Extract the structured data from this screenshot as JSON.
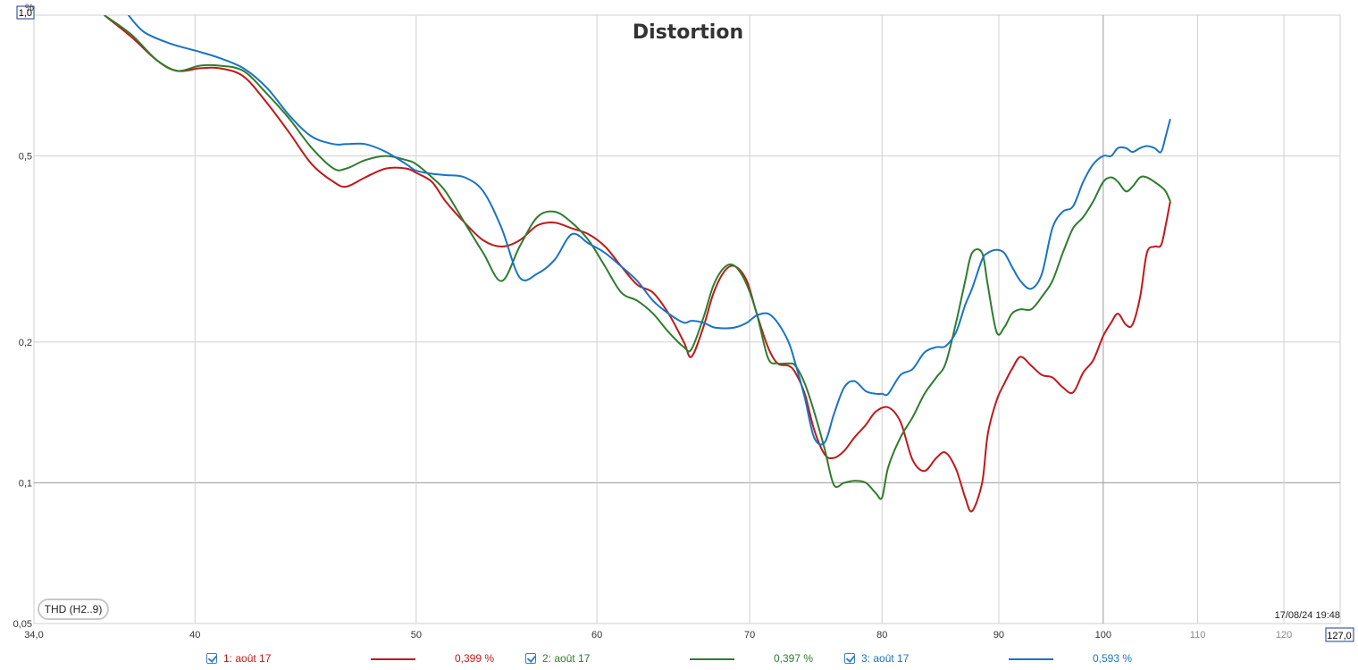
{
  "chart_data": {
    "type": "line",
    "title": "Distortion",
    "y_unit": "%",
    "y_scale": "log",
    "ylim": [
      0.05,
      1.0
    ],
    "xlim": [
      34,
      127
    ],
    "y_ticks": [
      "1,0",
      "0,5",
      "0,2",
      "0,1",
      "0,05"
    ],
    "y_tick_values": [
      1.0,
      0.5,
      0.2,
      0.1,
      0.05
    ],
    "x_ticks": [
      "34,0",
      "40",
      "50",
      "60",
      "70",
      "80",
      "90",
      "100",
      "110",
      "120",
      "127,0"
    ],
    "x_tick_values": [
      34,
      40,
      50,
      60,
      70,
      80,
      90,
      100,
      110,
      120,
      127
    ],
    "grid": true,
    "series": [
      {
        "name": "1: août 17",
        "color": "#c0191a",
        "readout": "0,399 %",
        "points": [
          [
            36.5,
            1.0
          ],
          [
            37.5,
            0.9
          ],
          [
            38.5,
            0.8
          ],
          [
            39.3,
            0.76
          ],
          [
            40.2,
            0.77
          ],
          [
            41,
            0.77
          ],
          [
            42,
            0.74
          ],
          [
            43,
            0.65
          ],
          [
            44,
            0.56
          ],
          [
            45,
            0.48
          ],
          [
            46,
            0.44
          ],
          [
            46.6,
            0.43
          ],
          [
            47.5,
            0.45
          ],
          [
            48.5,
            0.47
          ],
          [
            49.5,
            0.47
          ],
          [
            50,
            0.46
          ],
          [
            50.8,
            0.44
          ],
          [
            51.5,
            0.4
          ],
          [
            52.5,
            0.36
          ],
          [
            53.5,
            0.33
          ],
          [
            54.5,
            0.32
          ],
          [
            55.5,
            0.33
          ],
          [
            56.5,
            0.355
          ],
          [
            57.5,
            0.36
          ],
          [
            58.5,
            0.35
          ],
          [
            59.5,
            0.34
          ],
          [
            60.5,
            0.32
          ],
          [
            61.5,
            0.29
          ],
          [
            62.5,
            0.265
          ],
          [
            63.5,
            0.255
          ],
          [
            64.5,
            0.23
          ],
          [
            65.5,
            0.2
          ],
          [
            66,
            0.186
          ],
          [
            66.8,
            0.215
          ],
          [
            67.5,
            0.255
          ],
          [
            68.3,
            0.285
          ],
          [
            69,
            0.29
          ],
          [
            69.8,
            0.27
          ],
          [
            70.5,
            0.23
          ],
          [
            71.3,
            0.195
          ],
          [
            72,
            0.18
          ],
          [
            72.8,
            0.178
          ],
          [
            73.3,
            0.172
          ],
          [
            74,
            0.155
          ],
          [
            74.7,
            0.13
          ],
          [
            75.5,
            0.115
          ],
          [
            76.2,
            0.113
          ],
          [
            77,
            0.117
          ],
          [
            77.8,
            0.125
          ],
          [
            78.7,
            0.133
          ],
          [
            79.5,
            0.142
          ],
          [
            80.5,
            0.145
          ],
          [
            81.5,
            0.135
          ],
          [
            82.5,
            0.112
          ],
          [
            83.5,
            0.106
          ],
          [
            84.5,
            0.113
          ],
          [
            85.3,
            0.116
          ],
          [
            86.2,
            0.107
          ],
          [
            87,
            0.093
          ],
          [
            87.6,
            0.087
          ],
          [
            88.5,
            0.1
          ],
          [
            89,
            0.127
          ],
          [
            89.8,
            0.15
          ],
          [
            90.5,
            0.163
          ],
          [
            91.2,
            0.175
          ],
          [
            92,
            0.186
          ],
          [
            93,
            0.178
          ],
          [
            94,
            0.17
          ],
          [
            95,
            0.168
          ],
          [
            96,
            0.16
          ],
          [
            97,
            0.156
          ],
          [
            98,
            0.172
          ],
          [
            99,
            0.183
          ],
          [
            100,
            0.206
          ],
          [
            100.8,
            0.22
          ],
          [
            101.5,
            0.23
          ],
          [
            102.3,
            0.218
          ],
          [
            103,
            0.218
          ],
          [
            103.8,
            0.25
          ],
          [
            104.5,
            0.31
          ],
          [
            105.3,
            0.32
          ],
          [
            106,
            0.322
          ],
          [
            106.5,
            0.355
          ],
          [
            107,
            0.4
          ]
        ]
      },
      {
        "name": "2: août 17",
        "color": "#2e7d2e",
        "readout": "0,397 %",
        "points": [
          [
            36.5,
            1.0
          ],
          [
            37.5,
            0.91
          ],
          [
            38.5,
            0.8
          ],
          [
            39.3,
            0.76
          ],
          [
            40.2,
            0.78
          ],
          [
            41,
            0.78
          ],
          [
            42,
            0.76
          ],
          [
            43,
            0.68
          ],
          [
            44,
            0.6
          ],
          [
            45,
            0.52
          ],
          [
            46,
            0.47
          ],
          [
            46.6,
            0.47
          ],
          [
            47.5,
            0.49
          ],
          [
            48.5,
            0.5
          ],
          [
            49.5,
            0.49
          ],
          [
            50,
            0.48
          ],
          [
            50.8,
            0.45
          ],
          [
            51.5,
            0.42
          ],
          [
            52.5,
            0.36
          ],
          [
            53.5,
            0.31
          ],
          [
            54.5,
            0.27
          ],
          [
            55.5,
            0.32
          ],
          [
            56.5,
            0.37
          ],
          [
            57.5,
            0.38
          ],
          [
            58.5,
            0.36
          ],
          [
            59.5,
            0.33
          ],
          [
            60.5,
            0.29
          ],
          [
            61.5,
            0.255
          ],
          [
            62.5,
            0.245
          ],
          [
            63.5,
            0.23
          ],
          [
            64.5,
            0.21
          ],
          [
            65.5,
            0.195
          ],
          [
            66,
            0.193
          ],
          [
            66.8,
            0.225
          ],
          [
            67.5,
            0.265
          ],
          [
            68.3,
            0.29
          ],
          [
            69,
            0.29
          ],
          [
            69.8,
            0.265
          ],
          [
            70.5,
            0.23
          ],
          [
            71.3,
            0.185
          ],
          [
            72,
            0.18
          ],
          [
            72.8,
            0.18
          ],
          [
            73.3,
            0.178
          ],
          [
            74,
            0.163
          ],
          [
            74.7,
            0.142
          ],
          [
            75.5,
            0.118
          ],
          [
            76.2,
            0.099
          ],
          [
            77,
            0.1
          ],
          [
            77.8,
            0.101
          ],
          [
            78.7,
            0.1
          ],
          [
            79.5,
            0.095
          ],
          [
            80,
            0.093
          ],
          [
            80.5,
            0.108
          ],
          [
            81.5,
            0.125
          ],
          [
            82.5,
            0.138
          ],
          [
            83.5,
            0.155
          ],
          [
            84.5,
            0.168
          ],
          [
            85.3,
            0.18
          ],
          [
            86.2,
            0.22
          ],
          [
            87,
            0.27
          ],
          [
            87.6,
            0.31
          ],
          [
            88.5,
            0.31
          ],
          [
            89,
            0.265
          ],
          [
            89.8,
            0.21
          ],
          [
            90.5,
            0.215
          ],
          [
            91.2,
            0.23
          ],
          [
            92,
            0.235
          ],
          [
            93,
            0.235
          ],
          [
            94,
            0.25
          ],
          [
            95,
            0.27
          ],
          [
            96,
            0.31
          ],
          [
            97,
            0.35
          ],
          [
            98,
            0.37
          ],
          [
            99,
            0.4
          ],
          [
            100,
            0.44
          ],
          [
            100.8,
            0.45
          ],
          [
            101.5,
            0.44
          ],
          [
            102.3,
            0.42
          ],
          [
            103,
            0.43
          ],
          [
            103.8,
            0.45
          ],
          [
            104.5,
            0.45
          ],
          [
            105.3,
            0.44
          ],
          [
            106,
            0.43
          ],
          [
            106.5,
            0.42
          ],
          [
            107,
            0.4
          ]
        ]
      },
      {
        "name": "3: août 17",
        "color": "#1a73c4",
        "readout": "0,593 %",
        "points": [
          [
            37.4,
            1.0
          ],
          [
            38,
            0.92
          ],
          [
            39,
            0.87
          ],
          [
            40,
            0.84
          ],
          [
            41,
            0.81
          ],
          [
            42,
            0.77
          ],
          [
            43,
            0.7
          ],
          [
            44,
            0.61
          ],
          [
            45,
            0.55
          ],
          [
            46,
            0.53
          ],
          [
            46.6,
            0.53
          ],
          [
            47.5,
            0.53
          ],
          [
            48.5,
            0.51
          ],
          [
            49.5,
            0.48
          ],
          [
            50,
            0.465
          ],
          [
            50.8,
            0.458
          ],
          [
            51.5,
            0.455
          ],
          [
            52.5,
            0.45
          ],
          [
            53.5,
            0.42
          ],
          [
            54.5,
            0.35
          ],
          [
            55.5,
            0.275
          ],
          [
            56.5,
            0.28
          ],
          [
            57.5,
            0.3
          ],
          [
            58.5,
            0.34
          ],
          [
            59.5,
            0.325
          ],
          [
            60.5,
            0.31
          ],
          [
            61.5,
            0.29
          ],
          [
            62.5,
            0.27
          ],
          [
            63.5,
            0.245
          ],
          [
            64.5,
            0.23
          ],
          [
            65.5,
            0.22
          ],
          [
            66,
            0.222
          ],
          [
            66.8,
            0.22
          ],
          [
            67.5,
            0.215
          ],
          [
            68.3,
            0.214
          ],
          [
            69,
            0.215
          ],
          [
            69.8,
            0.22
          ],
          [
            70.5,
            0.228
          ],
          [
            71.3,
            0.23
          ],
          [
            72,
            0.22
          ],
          [
            72.8,
            0.2
          ],
          [
            73.3,
            0.18
          ],
          [
            74,
            0.152
          ],
          [
            74.7,
            0.125
          ],
          [
            75.5,
            0.122
          ],
          [
            76.2,
            0.14
          ],
          [
            77,
            0.16
          ],
          [
            77.8,
            0.165
          ],
          [
            78.7,
            0.157
          ],
          [
            79.5,
            0.155
          ],
          [
            80,
            0.155
          ],
          [
            80.5,
            0.155
          ],
          [
            81.5,
            0.17
          ],
          [
            82.5,
            0.175
          ],
          [
            83.5,
            0.19
          ],
          [
            84.5,
            0.195
          ],
          [
            85.3,
            0.196
          ],
          [
            86.2,
            0.21
          ],
          [
            87,
            0.24
          ],
          [
            87.6,
            0.26
          ],
          [
            88.5,
            0.3
          ],
          [
            89,
            0.31
          ],
          [
            89.8,
            0.315
          ],
          [
            90.5,
            0.31
          ],
          [
            91.2,
            0.29
          ],
          [
            92,
            0.27
          ],
          [
            93,
            0.26
          ],
          [
            94,
            0.28
          ],
          [
            95,
            0.35
          ],
          [
            96,
            0.38
          ],
          [
            97,
            0.39
          ],
          [
            98,
            0.44
          ],
          [
            99,
            0.48
          ],
          [
            100,
            0.5
          ],
          [
            100.8,
            0.5
          ],
          [
            101.5,
            0.52
          ],
          [
            102.3,
            0.52
          ],
          [
            103,
            0.51
          ],
          [
            103.8,
            0.52
          ],
          [
            104.5,
            0.525
          ],
          [
            105.3,
            0.52
          ],
          [
            106,
            0.51
          ],
          [
            106.5,
            0.55
          ],
          [
            107,
            0.6
          ]
        ]
      }
    ]
  },
  "thd_label": "THD (H2..9)",
  "timestamp": "17/08/24 19:48"
}
